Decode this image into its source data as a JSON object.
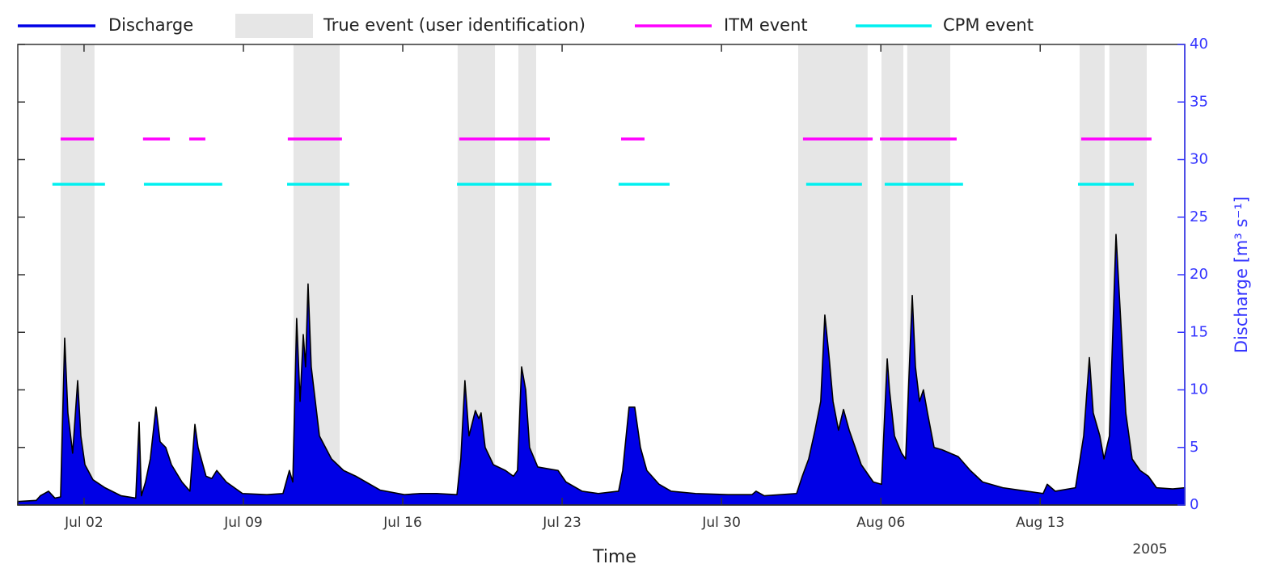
{
  "chart_data": {
    "type": "area",
    "x_label": "Time",
    "x_year": "2005",
    "y2_label": "Discharge [m³ s⁻¹]",
    "xlim": [
      -0.91,
      50.35
    ],
    "xticks": [
      {
        "value": 2,
        "label": "Jul 02"
      },
      {
        "value": 9,
        "label": "Jul 09"
      },
      {
        "value": 16,
        "label": "Jul 16"
      },
      {
        "value": 23,
        "label": "Jul 23"
      },
      {
        "value": 30,
        "label": "Jul 30"
      },
      {
        "value": 37,
        "label": "Aug 06"
      },
      {
        "value": 44,
        "label": "Aug 13"
      }
    ],
    "y2lim": [
      0,
      40
    ],
    "y2ticks": [
      0,
      5,
      10,
      15,
      20,
      25,
      30,
      35,
      40
    ],
    "x": [
      -0.91,
      -0.1,
      0.08,
      0.44,
      0.72,
      0.97,
      1.15,
      1.29,
      1.5,
      1.72,
      1.86,
      2.04,
      2.39,
      2.92,
      3.63,
      4.27,
      4.42,
      4.52,
      4.7,
      4.91,
      5.16,
      5.34,
      5.59,
      5.84,
      6.3,
      6.65,
      6.87,
      7.01,
      7.36,
      7.61,
      7.83,
      8.25,
      8.96,
      10.03,
      10.74,
      11.02,
      11.17,
      11.34,
      11.49,
      11.63,
      11.73,
      11.84,
      11.98,
      12.34,
      12.87,
      13.4,
      13.94,
      15.0,
      16.07,
      16.78,
      17.49,
      18.38,
      18.55,
      18.73,
      18.91,
      19.19,
      19.34,
      19.44,
      19.62,
      19.98,
      20.51,
      20.86,
      21.04,
      21.22,
      21.4,
      21.57,
      21.93,
      22.82,
      23.17,
      23.88,
      24.59,
      25.48,
      25.66,
      25.94,
      26.19,
      26.44,
      26.72,
      27.26,
      27.79,
      28.86,
      30.28,
      31.34,
      31.52,
      31.88,
      33.3,
      33.55,
      33.83,
      34.11,
      34.36,
      34.54,
      34.72,
      34.9,
      35.14,
      35.36,
      35.61,
      36.14,
      36.67,
      37.03,
      37.28,
      37.38,
      37.6,
      37.91,
      38.09,
      38.38,
      38.52,
      38.7,
      38.87,
      39.05,
      39.34,
      39.69,
      40.4,
      40.93,
      41.47,
      42.36,
      43.42,
      44.13,
      44.31,
      44.66,
      45.55,
      45.91,
      46.16,
      46.33,
      46.62,
      46.8,
      47.04,
      47.33,
      47.51,
      47.76,
      48.04,
      48.39,
      48.75,
      49.11,
      49.82,
      50.35
    ],
    "series": [
      {
        "name": "Discharge",
        "color": "#0000e6",
        "axis": "y2",
        "values": [
          0.3,
          0.4,
          0.8,
          1.2,
          0.6,
          0.7,
          14.5,
          8,
          4.5,
          10.8,
          6,
          3.5,
          2.2,
          1.5,
          0.8,
          0.6,
          7.2,
          0.8,
          2,
          4,
          8.5,
          5.5,
          5,
          3.5,
          2,
          1.2,
          7,
          5,
          2.5,
          2.3,
          3,
          2,
          1.0,
          0.9,
          1.0,
          3,
          2,
          16.2,
          9,
          14.8,
          12,
          19.2,
          12,
          6,
          4,
          3,
          2.5,
          1.3,
          0.9,
          1.0,
          1.0,
          0.9,
          4,
          10.8,
          6,
          8.2,
          7.5,
          8,
          5,
          3.5,
          3,
          2.5,
          3,
          12,
          10,
          5,
          3.3,
          3,
          2.0,
          1.2,
          1.0,
          1.2,
          3,
          8.5,
          8.5,
          5,
          3,
          1.8,
          1.2,
          1.0,
          0.9,
          0.9,
          1.2,
          0.8,
          1.0,
          2.5,
          4,
          6.5,
          9,
          16.5,
          13,
          9,
          6.5,
          8.3,
          6.5,
          3.5,
          2,
          1.8,
          12.7,
          10,
          6,
          4.5,
          4,
          18.2,
          12,
          9,
          10,
          8,
          5,
          4.8,
          4.2,
          3,
          2,
          1.5,
          1.2,
          1.0,
          1.8,
          1.2,
          1.5,
          6,
          12.8,
          8,
          6,
          4,
          6,
          23.5,
          17,
          8,
          4,
          3,
          2.5,
          1.5,
          1.4,
          1.5
        ]
      }
    ],
    "events": [
      {
        "name": "True event (user identification)",
        "color": "#e6e6e6",
        "intervals": [
          [
            0.97,
            2.46
          ],
          [
            11.2,
            13.23
          ],
          [
            18.41,
            20.05
          ],
          [
            21.08,
            21.86
          ],
          [
            33.37,
            36.42
          ],
          [
            37.03,
            37.99
          ],
          [
            38.16,
            40.05
          ],
          [
            45.73,
            46.83
          ],
          [
            47.04,
            48.68
          ]
        ]
      },
      {
        "name": "ITM event",
        "color": "#ff00ff",
        "intervals": [
          [
            0.97,
            2.43
          ],
          [
            4.59,
            5.77
          ],
          [
            6.62,
            7.33
          ],
          [
            10.95,
            13.33
          ],
          [
            18.48,
            22.46
          ],
          [
            25.59,
            26.62
          ],
          [
            33.58,
            36.64
          ],
          [
            36.96,
            40.33
          ],
          [
            45.8,
            48.89
          ]
        ]
      },
      {
        "name": "CPM event",
        "color": "#00f0f0",
        "intervals": [
          [
            0.61,
            2.92
          ],
          [
            4.63,
            8.07
          ],
          [
            10.92,
            13.65
          ],
          [
            18.38,
            22.53
          ],
          [
            25.48,
            27.72
          ],
          [
            33.72,
            36.17
          ],
          [
            37.17,
            40.61
          ],
          [
            45.66,
            48.11
          ]
        ]
      }
    ]
  }
}
